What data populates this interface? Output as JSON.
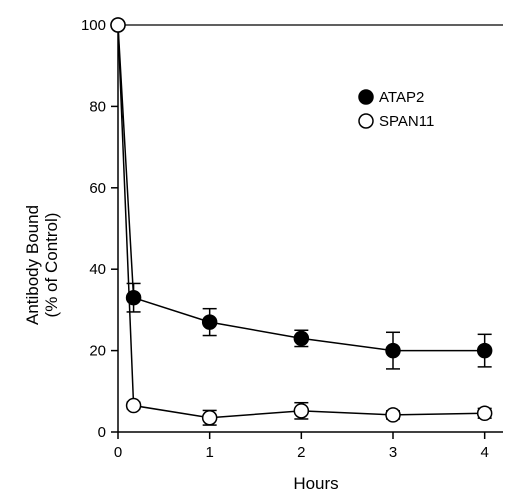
{
  "chart_data": {
    "type": "line",
    "title": "",
    "xlabel": "Hours",
    "ylabel_line1": "Antibody Bound",
    "ylabel_line2": "(% of Control)",
    "xlim": [
      0,
      4.2
    ],
    "ylim": [
      0,
      100
    ],
    "x_ticks": [
      0,
      1,
      2,
      3,
      4
    ],
    "x_tick_labels": [
      "0",
      "1",
      "2",
      "3",
      "4"
    ],
    "y_ticks": [
      0,
      20,
      40,
      60,
      80,
      100
    ],
    "y_tick_labels": [
      "0",
      "20",
      "40",
      "60",
      "80",
      "100"
    ],
    "grid": false,
    "legend_position": "top-right",
    "reference_line": {
      "y": 100
    },
    "series": [
      {
        "name": "ATAP2",
        "marker": "filled-circle",
        "color": "#000000",
        "x": [
          0,
          0.17,
          1,
          2,
          3,
          4
        ],
        "y": [
          100,
          33,
          27,
          23,
          20,
          20
        ],
        "error": [
          0,
          3.5,
          3.3,
          2,
          4.5,
          4
        ]
      },
      {
        "name": "SPAN11",
        "marker": "open-circle",
        "color": "#000000",
        "x": [
          0,
          0.17,
          1,
          2,
          3,
          4
        ],
        "y": [
          100,
          6.5,
          3.5,
          5.2,
          4.2,
          4.6
        ],
        "error": [
          0,
          0.8,
          1.8,
          2,
          1,
          1.2
        ]
      }
    ]
  }
}
